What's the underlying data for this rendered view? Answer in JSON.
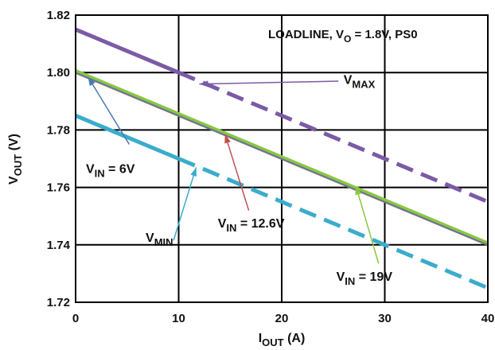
{
  "chart_data": {
    "type": "line",
    "title": "LOADLINE, VO = 1.8V, PS0",
    "title_parts": {
      "main": "LOADLINE, V",
      "sub": "O",
      "tail": " = 1.8V, PS0"
    },
    "xlabel": "IOUT (A)",
    "xlabel_parts": {
      "main": "I",
      "sub": "OUT",
      "tail": " (A)"
    },
    "ylabel": "VOUT (V)",
    "ylabel_parts": {
      "main": "V",
      "sub": "OUT",
      "tail": " (V)"
    },
    "xlim": [
      0,
      40
    ],
    "ylim": [
      1.72,
      1.82
    ],
    "x_ticks": [
      0,
      10,
      20,
      30,
      40
    ],
    "x_tick_labels": [
      "0",
      "10",
      "20",
      "30",
      "40"
    ],
    "y_ticks": [
      1.72,
      1.74,
      1.76,
      1.78,
      1.8,
      1.82
    ],
    "y_tick_labels": [
      "1.72",
      "1.74",
      "1.76",
      "1.78",
      "1.80",
      "1.82"
    ],
    "grid": true,
    "series": [
      {
        "name": "VMAX",
        "color": "#7b5aa6",
        "width": 5,
        "style": "solid-then-dashed",
        "dash_start_x": 10,
        "x": [
          0,
          40
        ],
        "y": [
          1.815,
          1.755
        ]
      },
      {
        "name": "VMIN",
        "color": "#3aaccc",
        "width": 5,
        "style": "solid-then-dashed",
        "dash_start_x": 10,
        "x": [
          0,
          40
        ],
        "y": [
          1.785,
          1.725
        ]
      },
      {
        "name": "VIN = 12.6V",
        "color": "#c0504d",
        "width": 3,
        "style": "solid",
        "x": [
          0,
          40
        ],
        "y": [
          1.8,
          1.74
        ]
      },
      {
        "name": "VIN = 19V",
        "color": "#8dc63f",
        "width": 5,
        "style": "solid",
        "x": [
          0,
          40
        ],
        "y": [
          1.8005,
          1.7405
        ]
      },
      {
        "name": "VIN = 6V",
        "color": "#4a7ab5",
        "width": 1.5,
        "style": "solid",
        "x": [
          0,
          40
        ],
        "y": [
          1.8,
          1.74
        ]
      }
    ],
    "annotations": [
      {
        "id": "vmax",
        "label": "VMAX",
        "label_main": "V",
        "label_sub": "MAX",
        "color": "#7b5aa6",
        "arrow_to": [
          12,
          1.796
        ],
        "arrow_from": [
          25.5,
          1.797
        ],
        "text_at": [
          26,
          1.796
        ]
      },
      {
        "id": "vmin",
        "label": "VMIN",
        "label_main": "V",
        "label_sub": "MIN",
        "color": "#3aaccc",
        "arrow_to": [
          11.7,
          1.767
        ],
        "arrow_from": [
          9.5,
          1.7415
        ],
        "text_at": [
          6.8,
          1.741
        ]
      },
      {
        "id": "vin6",
        "label": "VIN = 6V",
        "label_main": "V",
        "label_sub": "IN",
        "label_tail": " = 6V",
        "color": "#4a7ab5",
        "arrow_to": [
          1.2,
          1.7985
        ],
        "arrow_from": [
          5.2,
          1.775
        ],
        "text_at": [
          1.0,
          1.765
        ]
      },
      {
        "id": "vin126",
        "label": "VIN = 12.6V",
        "label_main": "V",
        "label_sub": "IN",
        "label_tail": " = 12.6V",
        "color": "#c0504d",
        "arrow_to": [
          14.5,
          1.7785
        ],
        "arrow_from": [
          16.8,
          1.752
        ],
        "text_at": [
          13.8,
          1.746
        ]
      },
      {
        "id": "vin19",
        "label": "VIN = 19V",
        "label_main": "V",
        "label_sub": "IN",
        "label_tail": " = 19V",
        "color": "#8dc63f",
        "arrow_to": [
          27.2,
          1.7605
        ],
        "arrow_from": [
          29.4,
          1.7335
        ],
        "text_at": [
          25.3,
          1.7275
        ]
      }
    ]
  }
}
